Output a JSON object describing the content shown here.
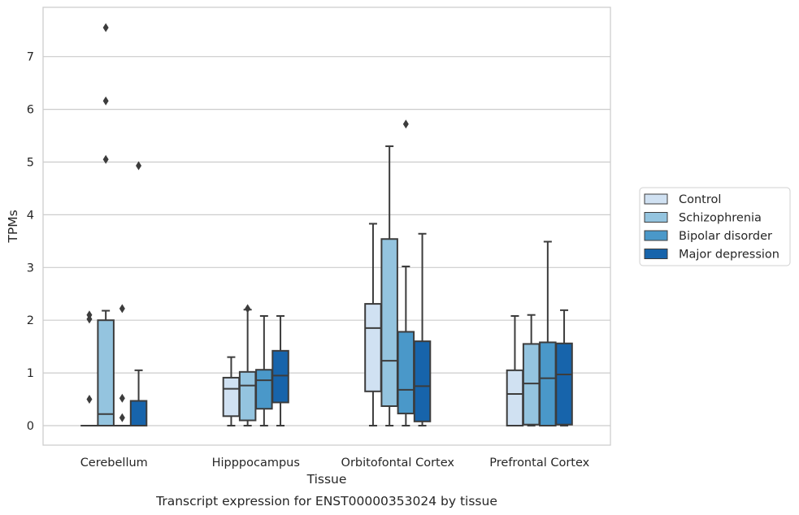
{
  "chart_data": {
    "type": "box",
    "title": "Transcript expression for ENST00000353024 by tissue",
    "xlabel": "Tissue",
    "ylabel": "TPMs",
    "ylim": [
      -0.37,
      7.95
    ],
    "yticks": [
      0,
      1,
      2,
      3,
      4,
      5,
      6,
      7
    ],
    "grid": true,
    "legend_position": "right",
    "categories": [
      "Cerebellum",
      "Hipppocampus",
      "Orbitofontal Cortex",
      "Prefrontal Cortex"
    ],
    "series": [
      {
        "name": "Control",
        "color": "#d0e1f2",
        "boxes": [
          {
            "whislo": 0,
            "q1": 0,
            "med": 0,
            "q3": 0,
            "whishi": 0,
            "fliers": [
              0.5,
              2.02,
              2.1
            ]
          },
          {
            "whislo": 0,
            "q1": 0.18,
            "med": 0.7,
            "q3": 0.91,
            "whishi": 1.3,
            "fliers": []
          },
          {
            "whislo": 0,
            "q1": 0.65,
            "med": 1.85,
            "q3": 2.31,
            "whishi": 3.83,
            "fliers": []
          },
          {
            "whislo": 0,
            "q1": 0,
            "med": 0.6,
            "q3": 1.05,
            "whishi": 2.08,
            "fliers": []
          }
        ]
      },
      {
        "name": "Schizophrenia",
        "color": "#94c4df",
        "boxes": [
          {
            "whislo": 0,
            "q1": 0,
            "med": 0.22,
            "q3": 2.0,
            "whishi": 2.18,
            "fliers": [
              5.05,
              6.16,
              7.55
            ]
          },
          {
            "whislo": 0,
            "q1": 0.1,
            "med": 0.76,
            "q3": 1.02,
            "whishi": 2.2,
            "fliers": [
              2.22
            ]
          },
          {
            "whislo": 0,
            "q1": 0.37,
            "med": 1.23,
            "q3": 3.54,
            "whishi": 5.3,
            "fliers": []
          },
          {
            "whislo": 0,
            "q1": 0.02,
            "med": 0.8,
            "q3": 1.55,
            "whishi": 2.1,
            "fliers": []
          }
        ]
      },
      {
        "name": "Bipolar disorder",
        "color": "#4a98c9",
        "boxes": [
          {
            "whislo": 0,
            "q1": 0,
            "med": 0,
            "q3": 0,
            "whishi": 0,
            "fliers": [
              0.15,
              0.52,
              2.22
            ]
          },
          {
            "whislo": 0,
            "q1": 0.32,
            "med": 0.86,
            "q3": 1.06,
            "whishi": 2.08,
            "fliers": []
          },
          {
            "whislo": 0,
            "q1": 0.23,
            "med": 0.68,
            "q3": 1.78,
            "whishi": 3.02,
            "fliers": [
              5.72
            ]
          },
          {
            "whislo": 0,
            "q1": 0,
            "med": 0.9,
            "q3": 1.58,
            "whishi": 3.49,
            "fliers": []
          }
        ]
      },
      {
        "name": "Major depression",
        "color": "#1764ab",
        "boxes": [
          {
            "whislo": 0,
            "q1": 0,
            "med": 0,
            "q3": 0.47,
            "whishi": 1.05,
            "fliers": [
              4.93
            ]
          },
          {
            "whislo": 0,
            "q1": 0.44,
            "med": 0.95,
            "q3": 1.42,
            "whishi": 2.08,
            "fliers": []
          },
          {
            "whislo": 0,
            "q1": 0.08,
            "med": 0.75,
            "q3": 1.6,
            "whishi": 3.64,
            "fliers": []
          },
          {
            "whislo": 0,
            "q1": 0.02,
            "med": 0.97,
            "q3": 1.56,
            "whishi": 2.19,
            "fliers": []
          }
        ]
      }
    ]
  }
}
